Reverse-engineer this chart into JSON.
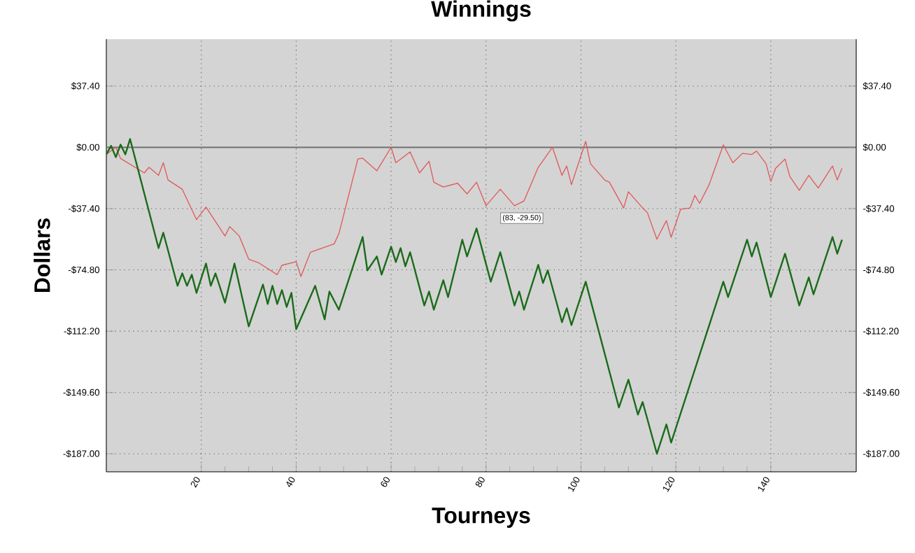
{
  "chart_data": {
    "type": "line",
    "title": "Winnings",
    "xlabel": "Tourneys",
    "ylabel": "Dollars",
    "xlim": [
      0,
      158
    ],
    "xticks": [
      20,
      40,
      60,
      80,
      100,
      120,
      140
    ],
    "ylim": [
      -198,
      66
    ],
    "yticks": [
      {
        "value": 37.4,
        "label": "$37.40"
      },
      {
        "value": 0,
        "label": "$0.00"
      },
      {
        "value": -37.4,
        "label": "-$37.40"
      },
      {
        "value": -74.8,
        "label": "-$74.80"
      },
      {
        "value": -112.2,
        "label": "-$112.20"
      },
      {
        "value": -149.6,
        "label": "-$149.60"
      },
      {
        "value": -187.0,
        "label": "-$187.00"
      }
    ],
    "y2lim": [
      -198,
      66
    ],
    "y2ticks": [
      {
        "value": 37.4,
        "label": "$37.40"
      },
      {
        "value": 0,
        "label": "$0.00"
      },
      {
        "value": -37.4,
        "label": "-$37.40"
      },
      {
        "value": -74.8,
        "label": "-$74.80"
      },
      {
        "value": -112.2,
        "label": "-$112.20"
      },
      {
        "value": -149.6,
        "label": "-$149.60"
      },
      {
        "value": -187.0,
        "label": "-$187.00"
      }
    ],
    "grid": true,
    "marker": "none",
    "line_style": "solid",
    "ref_lines": [
      {
        "axis": "y",
        "value": 0,
        "color": "#707070"
      }
    ],
    "annotations": [
      {
        "text": "(83, -29.50)",
        "x": 83,
        "y": -29.5
      }
    ],
    "series": [
      {
        "color": "#e05a5a",
        "x": [
          0,
          2,
          3,
          8,
          9,
          11,
          12,
          13,
          16,
          19,
          21,
          25,
          26,
          28,
          30,
          32,
          36,
          37,
          40,
          41,
          43,
          48,
          49,
          53,
          54,
          57,
          60,
          61,
          64,
          66,
          68,
          69,
          71,
          74,
          76,
          78,
          80,
          83,
          86,
          88,
          91,
          94,
          96,
          97,
          98,
          101,
          102,
          105,
          106,
          109,
          110,
          113,
          114,
          116,
          118,
          119,
          121,
          123,
          124,
          125,
          127,
          130,
          132,
          134,
          136,
          137,
          139,
          140,
          141,
          143,
          144,
          146,
          148,
          150,
          153,
          154,
          155
        ],
        "values": [
          -4.3,
          0,
          -6.8,
          -15.6,
          -12.2,
          -17.1,
          -9.4,
          -19.9,
          -25.6,
          -44.1,
          -36.5,
          -54.1,
          -48.4,
          -54.1,
          -68.3,
          -70.3,
          -77.7,
          -72.0,
          -69.8,
          -78.8,
          -64.0,
          -58.9,
          -52.7,
          -7.1,
          -6.6,
          -14.3,
          0,
          -9.4,
          -2.8,
          -15.6,
          -8.5,
          -21.3,
          -24.2,
          -21.9,
          -28.4,
          -21.3,
          -35.6,
          -25.6,
          -35.6,
          -32.7,
          -12.2,
          0,
          -17.1,
          -11.4,
          -22.8,
          3.7,
          -10.0,
          -19.9,
          -21.3,
          -37.0,
          -27.1,
          -37.0,
          -39.9,
          -56.1,
          -44.7,
          -54.9,
          -37.8,
          -37.0,
          -29.3,
          -34.2,
          -22.8,
          1.5,
          -9.4,
          -3.7,
          -4.3,
          -2.3,
          -10.0,
          -20.8,
          -12.8,
          -7.1,
          -17.7,
          -26.2,
          -17.1,
          -24.8,
          -11.4,
          -19.9,
          -12.8
        ]
      },
      {
        "color": "#1a6b1a",
        "x": [
          0,
          1,
          2,
          3,
          4,
          5,
          11,
          12,
          15,
          16,
          17,
          18,
          19,
          21,
          22,
          23,
          25,
          27,
          30,
          33,
          34,
          35,
          36,
          37,
          38,
          39,
          40,
          44,
          46,
          47,
          49,
          54,
          55,
          57,
          58,
          60,
          61,
          62,
          63,
          64,
          67,
          68,
          69,
          71,
          72,
          75,
          76,
          78,
          81,
          83,
          86,
          87,
          88,
          91,
          92,
          93,
          96,
          97,
          98,
          101,
          108,
          110,
          112,
          113,
          116,
          118,
          119,
          130,
          131,
          135,
          136,
          137,
          140,
          143,
          146,
          148,
          149,
          153,
          154,
          155
        ],
        "values": [
          -4.3,
          0.9,
          -6.0,
          1.7,
          -4.3,
          5.1,
          -61.5,
          -52.1,
          -84.5,
          -76.9,
          -84.5,
          -77.7,
          -88.8,
          -70.9,
          -84.5,
          -76.9,
          -94.8,
          -70.9,
          -109.3,
          -83.7,
          -95.6,
          -84.5,
          -95.6,
          -87.1,
          -97.4,
          -88.8,
          -111.0,
          -84.5,
          -105.0,
          -88.0,
          -99.1,
          -54.7,
          -75.1,
          -66.6,
          -77.7,
          -60.6,
          -70.0,
          -61.5,
          -72.6,
          -64.0,
          -96.5,
          -88.0,
          -99.1,
          -81.1,
          -91.4,
          -56.4,
          -66.6,
          -49.5,
          -82.0,
          -64.0,
          -96.5,
          -88.0,
          -99.1,
          -71.7,
          -82.8,
          -75.1,
          -106.7,
          -98.2,
          -108.5,
          -82.0,
          -158.8,
          -141.8,
          -163.1,
          -155.4,
          -187.0,
          -169.1,
          -180.2,
          -82.0,
          -91.4,
          -56.4,
          -66.6,
          -58.1,
          -91.4,
          -64.9,
          -96.5,
          -79.4,
          -89.7,
          -54.7,
          -64.9,
          -56.4
        ]
      }
    ]
  }
}
